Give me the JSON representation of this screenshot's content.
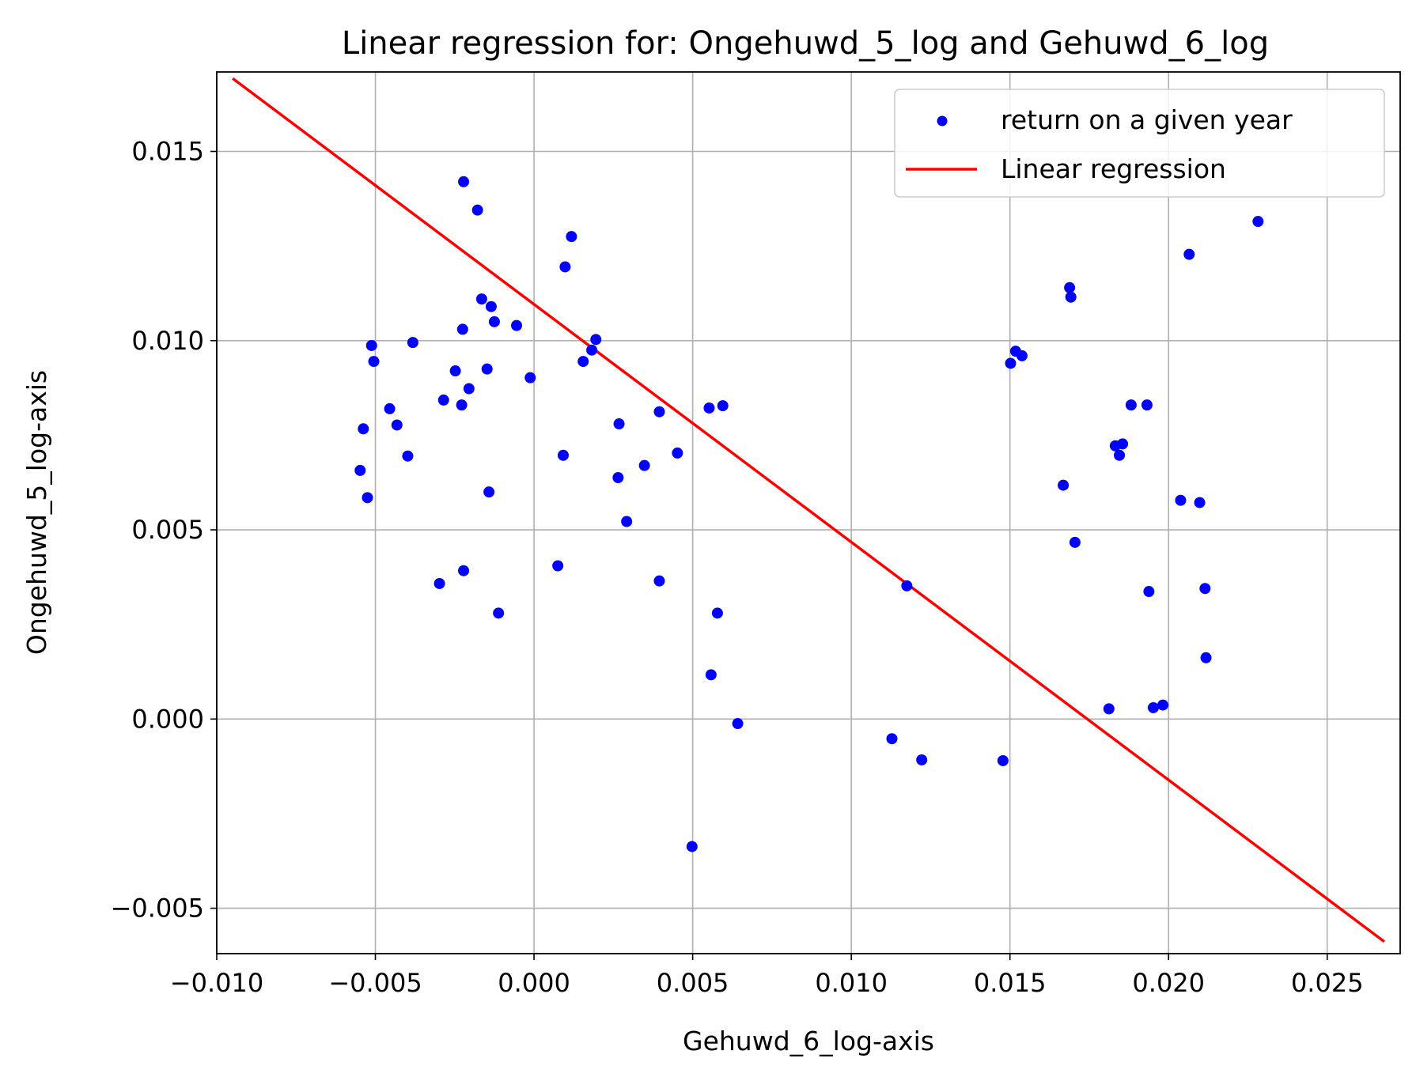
{
  "chart_data": {
    "type": "scatter",
    "title": "Linear regression for: Ongehuwd_5_log and Gehuwd_6_log",
    "xlabel": "Gehuwd_6_log-axis",
    "ylabel": "Ongehuwd_5_log-axis",
    "xlim": [
      -0.01,
      0.0273
    ],
    "ylim": [
      -0.0062,
      0.0171
    ],
    "xticks": [
      -0.01,
      -0.005,
      0.0,
      0.005,
      0.01,
      0.015,
      0.02,
      0.025
    ],
    "xtick_labels": [
      "−0.010",
      "−0.005",
      "0.000",
      "0.005",
      "0.010",
      "0.015",
      "0.020",
      "0.025"
    ],
    "yticks": [
      -0.005,
      0.0,
      0.005,
      0.01,
      0.015
    ],
    "ytick_labels": [
      "−0.005",
      "0.000",
      "0.005",
      "0.010",
      "0.015"
    ],
    "grid": true,
    "legend_position": "top-right",
    "series": [
      {
        "name": "return on a given year",
        "kind": "scatter",
        "color": "#0000ff",
        "points": [
          [
            -0.00222,
            0.0142
          ],
          [
            -0.00178,
            0.01345
          ],
          [
            -0.00165,
            0.0111
          ],
          [
            -0.00135,
            0.0109
          ],
          [
            -0.00125,
            0.0105
          ],
          [
            -0.00055,
            0.0104
          ],
          [
            -0.00225,
            0.0103
          ],
          [
            -0.00512,
            0.00987
          ],
          [
            -0.00382,
            0.00995
          ],
          [
            -0.00505,
            0.00945
          ],
          [
            -0.00248,
            0.0092
          ],
          [
            -0.00148,
            0.00925
          ],
          [
            -0.00205,
            0.00873
          ],
          [
            -0.00285,
            0.00843
          ],
          [
            -0.00228,
            0.0083
          ],
          [
            -0.00455,
            0.0082
          ],
          [
            -0.00432,
            0.00777
          ],
          [
            -0.00538,
            0.00767
          ],
          [
            -0.00398,
            0.00695
          ],
          [
            -0.00548,
            0.00657
          ],
          [
            -0.00525,
            0.00585
          ],
          [
            -0.00142,
            0.006
          ],
          [
            -0.00298,
            0.00358
          ],
          [
            -0.00222,
            0.00392
          ],
          [
            -0.00112,
            0.0028
          ],
          [
            -0.00012,
            0.00902
          ],
          [
            0.00118,
            0.01275
          ],
          [
            0.00098,
            0.01195
          ],
          [
            0.00195,
            0.01003
          ],
          [
            0.00182,
            0.00975
          ],
          [
            0.00155,
            0.00945
          ],
          [
            0.00395,
            0.00812
          ],
          [
            0.00268,
            0.0078
          ],
          [
            0.00092,
            0.00697
          ],
          [
            0.00452,
            0.00703
          ],
          [
            0.00348,
            0.0067
          ],
          [
            0.00265,
            0.00638
          ],
          [
            0.00292,
            0.00522
          ],
          [
            0.00075,
            0.00405
          ],
          [
            0.00395,
            0.00365
          ],
          [
            0.00552,
            0.00822
          ],
          [
            0.00595,
            0.00828
          ],
          [
            0.00578,
            0.0028
          ],
          [
            0.00558,
            0.00117
          ],
          [
            0.00642,
            -0.00012
          ],
          [
            0.00498,
            -0.00337
          ],
          [
            0.01175,
            0.00352
          ],
          [
            0.01128,
            -0.00052
          ],
          [
            0.01222,
            -0.00108
          ],
          [
            0.01478,
            -0.0011
          ],
          [
            0.01502,
            0.0094
          ],
          [
            0.01518,
            0.00972
          ],
          [
            0.01538,
            0.0096
          ],
          [
            0.01688,
            0.0114
          ],
          [
            0.01692,
            0.01115
          ],
          [
            0.01668,
            0.00618
          ],
          [
            0.01705,
            0.00467
          ],
          [
            0.01882,
            0.0083
          ],
          [
            0.01932,
            0.0083
          ],
          [
            0.01832,
            0.00722
          ],
          [
            0.01855,
            0.00727
          ],
          [
            0.01845,
            0.00697
          ],
          [
            0.02038,
            0.00578
          ],
          [
            0.02098,
            0.00572
          ],
          [
            0.01938,
            0.00337
          ],
          [
            0.02115,
            0.00345
          ],
          [
            0.02118,
            0.00162
          ],
          [
            0.01812,
            0.00027
          ],
          [
            0.01952,
            0.0003
          ],
          [
            0.01982,
            0.00037
          ],
          [
            0.02065,
            0.01228
          ],
          [
            0.02282,
            0.01315
          ]
        ]
      },
      {
        "name": "Linear regression",
        "kind": "line",
        "color": "#ff0000",
        "intercept": 0.01096,
        "slope": -0.6285,
        "x_range": [
          -0.0095,
          0.0268
        ]
      }
    ]
  }
}
